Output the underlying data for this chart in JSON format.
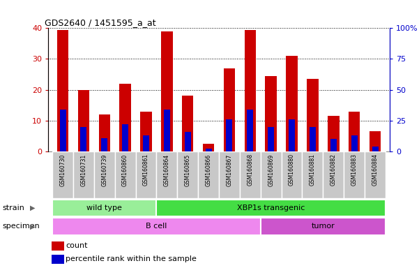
{
  "title": "GDS2640 / 1451595_a_at",
  "samples": [
    "GSM160730",
    "GSM160731",
    "GSM160739",
    "GSM160860",
    "GSM160861",
    "GSM160864",
    "GSM160865",
    "GSM160866",
    "GSM160867",
    "GSM160868",
    "GSM160869",
    "GSM160880",
    "GSM160881",
    "GSM160882",
    "GSM160883",
    "GSM160884"
  ],
  "count_values": [
    39.5,
    20.0,
    12.0,
    22.0,
    13.0,
    39.0,
    18.0,
    2.5,
    27.0,
    39.5,
    24.5,
    31.0,
    23.5,
    11.5,
    13.0,
    6.5
  ],
  "percentile_values": [
    34,
    20,
    11,
    22,
    13,
    34,
    16,
    2,
    26,
    34,
    20,
    26,
    20,
    10,
    13,
    4
  ],
  "count_color": "#cc0000",
  "percentile_color": "#0000cc",
  "ylim_left": [
    0,
    40
  ],
  "ylim_right": [
    0,
    100
  ],
  "yticks_left": [
    0,
    10,
    20,
    30,
    40
  ],
  "yticks_right": [
    0,
    25,
    50,
    75,
    100
  ],
  "ytick_labels_right": [
    "0",
    "25",
    "50",
    "75",
    "100%"
  ],
  "strain_groups": [
    {
      "label": "wild type",
      "start": 0,
      "end": 4,
      "color": "#99ee99"
    },
    {
      "label": "XBP1s transgenic",
      "start": 5,
      "end": 15,
      "color": "#44dd44"
    }
  ],
  "specimen_groups": [
    {
      "label": "B cell",
      "start": 0,
      "end": 9,
      "color": "#ee88ee"
    },
    {
      "label": "tumor",
      "start": 10,
      "end": 15,
      "color": "#cc55cc"
    }
  ],
  "bar_width": 0.55,
  "tick_area_color": "#c8c8c8",
  "grid_color": "#000000",
  "left_yaxis_color": "#cc0000",
  "right_yaxis_color": "#0000cc",
  "legend_items": [
    {
      "label": "count",
      "color": "#cc0000"
    },
    {
      "label": "percentile rank within the sample",
      "color": "#0000cc"
    }
  ]
}
